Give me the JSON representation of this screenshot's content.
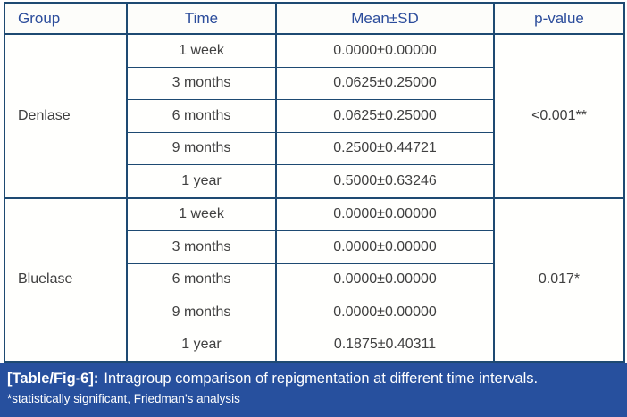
{
  "table": {
    "columns": [
      "Group",
      "Time",
      "Mean±SD",
      "p-value"
    ],
    "groups": [
      {
        "name": "Denlase",
        "p_value": "<0.001**",
        "rows": [
          {
            "time": "1 week",
            "mean": "0.0000±0.00000"
          },
          {
            "time": "3 months",
            "mean": "0.0625±0.25000"
          },
          {
            "time": "6 months",
            "mean": "0.0625±0.25000"
          },
          {
            "time": "9 months",
            "mean": "0.2500±0.44721"
          },
          {
            "time": "1 year",
            "mean": "0.5000±0.63246"
          }
        ]
      },
      {
        "name": "Bluelase",
        "p_value": "0.017*",
        "rows": [
          {
            "time": "1 week",
            "mean": "0.0000±0.00000"
          },
          {
            "time": "3 months",
            "mean": "0.0000±0.00000"
          },
          {
            "time": "6 months",
            "mean": "0.0000±0.00000"
          },
          {
            "time": "9 months",
            "mean": "0.0000±0.00000"
          },
          {
            "time": "1 year",
            "mean": "0.1875±0.40311"
          }
        ]
      }
    ]
  },
  "caption": {
    "label": "[Table/Fig-6]:",
    "text": "Intragroup comparison of repigmentation at different time intervals.",
    "footnote": "*statistically significant, Friedman’s analysis"
  },
  "colors": {
    "table_border": "#1e4a72",
    "header_text": "#2b4c9b",
    "body_text": "#404040",
    "caption_bg": "#27509e",
    "caption_text": "#ffffff"
  }
}
